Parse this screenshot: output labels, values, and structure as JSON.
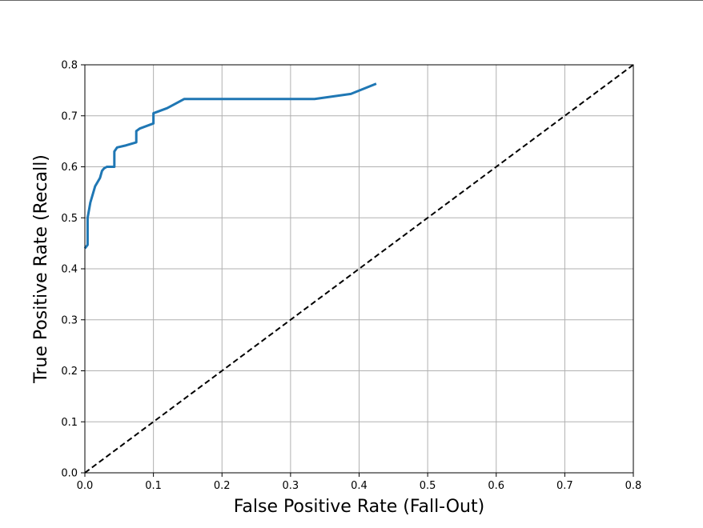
{
  "chart_data": {
    "type": "line",
    "title": "",
    "xlabel": "False Positive Rate (Fall-Out)",
    "ylabel": "True Positive Rate (Recall)",
    "xlim": [
      0.0,
      0.8
    ],
    "ylim": [
      0.0,
      0.8
    ],
    "xticks": [
      "0.0",
      "0.1",
      "0.2",
      "0.3",
      "0.4",
      "0.5",
      "0.6",
      "0.7",
      "0.8"
    ],
    "yticks": [
      "0.0",
      "0.1",
      "0.2",
      "0.3",
      "0.4",
      "0.5",
      "0.6",
      "0.7",
      "0.8"
    ],
    "grid": true,
    "legend": "none",
    "series": [
      {
        "color": "#1f77b4",
        "line_style": "solid",
        "x": [
          0.0,
          0.004,
          0.004,
          0.008,
          0.015,
          0.022,
          0.025,
          0.028,
          0.032,
          0.038,
          0.043,
          0.043,
          0.047,
          0.06,
          0.075,
          0.075,
          0.08,
          0.1,
          0.1,
          0.12,
          0.145,
          0.2,
          0.3,
          0.335,
          0.388,
          0.425
        ],
        "y": [
          0.44,
          0.447,
          0.5,
          0.53,
          0.562,
          0.578,
          0.592,
          0.597,
          0.6,
          0.6,
          0.6,
          0.63,
          0.638,
          0.642,
          0.648,
          0.67,
          0.675,
          0.685,
          0.705,
          0.715,
          0.733,
          0.733,
          0.733,
          0.733,
          0.743,
          0.763
        ]
      },
      {
        "color": "#000000",
        "line_style": "dashed",
        "x": [
          0.0,
          0.8
        ],
        "y": [
          0.0,
          0.8
        ]
      }
    ]
  }
}
